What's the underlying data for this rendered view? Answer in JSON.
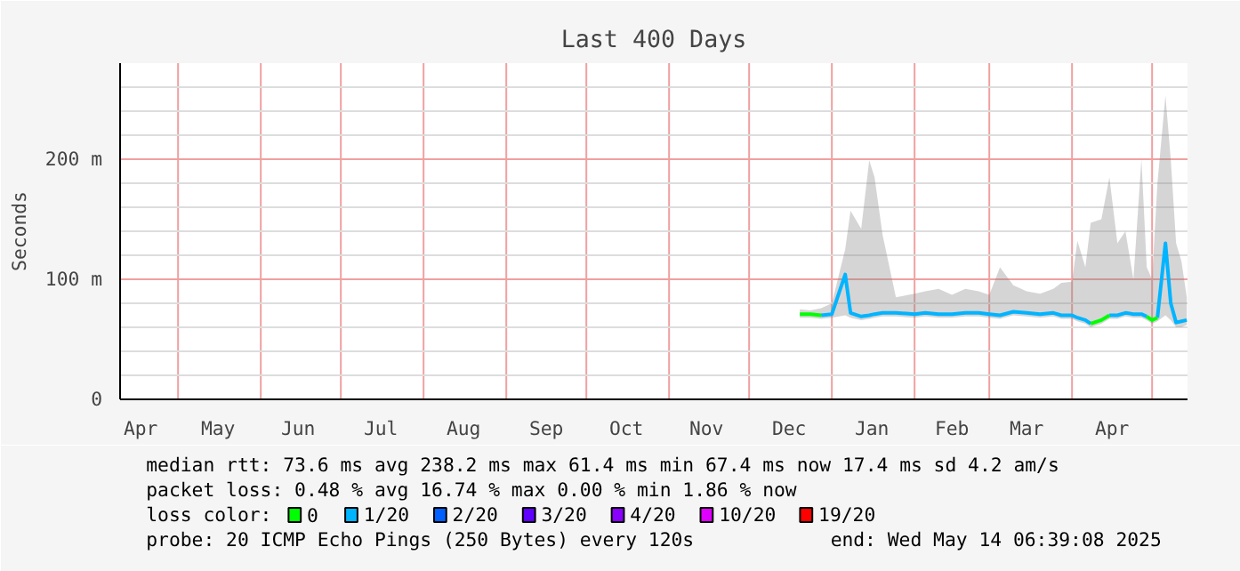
{
  "chart_data": {
    "type": "line",
    "title": "Last 400 Days",
    "ylabel": "Seconds",
    "legend_title": "loss color:",
    "legend": "bottom",
    "grid": true,
    "line_style": "solid",
    "xlim": [
      "2024-04-09T06:39",
      "2025-05-14T06:39"
    ],
    "xticks": [
      {
        "value": "2024-05-01",
        "label": null
      },
      {
        "value": "2024-06-01",
        "label": null
      },
      {
        "value": "2024-07-01",
        "label": null
      },
      {
        "value": "2024-08-01",
        "label": null
      },
      {
        "value": "2024-09-01",
        "label": null
      },
      {
        "value": "2024-10-01",
        "label": null
      },
      {
        "value": "2024-11-01",
        "label": null
      },
      {
        "value": "2024-12-01",
        "label": null
      },
      {
        "value": "2025-01-01",
        "label": null
      },
      {
        "value": "2025-02-01",
        "label": null
      },
      {
        "value": "2025-03-01",
        "label": null
      },
      {
        "value": "2025-04-01",
        "label": null
      },
      {
        "value": "2025-05-01",
        "label": null
      },
      {
        "value": "2024-04-17",
        "label": "Apr"
      },
      {
        "value": "2024-05-16",
        "label": "May"
      },
      {
        "value": "2024-06-15",
        "label": "Jun"
      },
      {
        "value": "2024-07-16",
        "label": "Jul"
      },
      {
        "value": "2024-08-16",
        "label": "Aug"
      },
      {
        "value": "2024-09-16",
        "label": "Sep"
      },
      {
        "value": "2024-10-16",
        "label": "Oct"
      },
      {
        "value": "2024-11-15",
        "label": "Nov"
      },
      {
        "value": "2024-12-16",
        "label": "Dec"
      },
      {
        "value": "2025-01-16",
        "label": "Jan"
      },
      {
        "value": "2025-02-15",
        "label": "Feb"
      },
      {
        "value": "2025-03-15",
        "label": "Mar"
      },
      {
        "value": "2025-04-16",
        "label": "Apr"
      }
    ],
    "ylim": [
      0,
      280
    ],
    "yticks": [
      {
        "value": 0,
        "label": "0"
      },
      {
        "value": 20,
        "label": null
      },
      {
        "value": 40,
        "label": null
      },
      {
        "value": 60,
        "label": null
      },
      {
        "value": 80,
        "label": null
      },
      {
        "value": 100,
        "label": "100 m"
      },
      {
        "value": 120,
        "label": null
      },
      {
        "value": 140,
        "label": null
      },
      {
        "value": 160,
        "label": null
      },
      {
        "value": 180,
        "label": null
      },
      {
        "value": 200,
        "label": "200 m"
      },
      {
        "value": 220,
        "label": null
      },
      {
        "value": 240,
        "label": null
      },
      {
        "value": 260,
        "label": null
      }
    ],
    "series": [
      {
        "name": "1/20",
        "color": "#00b4ff",
        "x": [
          "2024-12-20",
          "2024-12-24",
          "2024-12-28",
          "2025-01-01",
          "2025-01-06",
          "2025-01-08",
          "2025-01-12",
          "2025-01-15",
          "2025-01-17",
          "2025-01-20",
          "2025-01-25",
          "2025-02-01",
          "2025-02-05",
          "2025-02-10",
          "2025-02-15",
          "2025-02-20",
          "2025-02-25",
          "2025-03-01",
          "2025-03-05",
          "2025-03-10",
          "2025-03-15",
          "2025-03-20",
          "2025-03-25",
          "2025-03-28",
          "2025-04-01",
          "2025-04-03",
          "2025-04-06",
          "2025-04-08",
          "2025-04-12",
          "2025-04-15",
          "2025-04-18",
          "2025-04-21",
          "2025-04-24",
          "2025-04-27",
          "2025-04-29",
          "2025-05-01",
          "2025-05-03",
          "2025-05-06",
          "2025-05-08",
          "2025-05-10",
          "2025-05-12",
          "2025-05-14"
        ],
        "values": [
          null,
          null,
          70,
          71,
          104,
          72,
          69,
          70,
          71,
          72,
          72,
          71,
          72,
          71,
          71,
          72,
          72,
          71,
          70,
          73,
          72,
          71,
          72,
          70,
          70,
          68,
          66,
          63,
          null,
          70,
          70,
          72,
          71,
          71,
          69,
          null,
          68,
          130,
          80,
          64,
          65,
          66
        ],
        "lower": [
          68,
          68,
          67,
          68,
          70,
          68,
          66,
          67,
          68,
          69,
          69,
          68,
          69,
          68,
          68,
          69,
          69,
          68,
          67,
          70,
          69,
          68,
          69,
          67,
          67,
          65,
          63,
          60,
          63,
          67,
          67,
          69,
          68,
          68,
          66,
          63,
          65,
          70,
          66,
          60,
          60,
          62
        ],
        "upper": [
          75,
          74,
          76,
          80,
          125,
          157,
          142,
          199,
          185,
          137,
          85,
          88,
          90,
          92,
          87,
          92,
          90,
          87,
          110,
          95,
          90,
          88,
          92,
          97,
          98,
          132,
          110,
          147,
          150,
          185,
          130,
          140,
          100,
          200,
          110,
          100,
          180,
          253,
          200,
          130,
          115,
          85
        ]
      },
      {
        "name": "0",
        "color": "#00ff00",
        "x": [
          "2024-12-20",
          "2024-12-24",
          "2024-12-28",
          "2024-12-30",
          "2025-04-08",
          "2025-04-12",
          "2025-04-15",
          "2025-04-16",
          "2025-04-29",
          "2025-05-01",
          "2025-05-03"
        ],
        "values": [
          71,
          71,
          70,
          null,
          63,
          66,
          70,
          null,
          69,
          66,
          68
        ]
      },
      {
        "name": "2/20",
        "color": "#0060ff"
      },
      {
        "name": "3/20",
        "color": "#6000ff"
      },
      {
        "name": "4/20",
        "color": "#8a00ff"
      },
      {
        "name": "10/20",
        "color": "#e000ff"
      },
      {
        "name": "19/20",
        "color": "#ff0000"
      }
    ],
    "annotations": [
      "median rtt:  73.6 ms avg  238.2 ms max  61.4 ms min  67.4 ms now  17.4 ms sd  4.2   am/s",
      "packet loss: 0.48 % avg  16.74 % max  0.00 % min  1.86 % now",
      "probe:        20 ICMP Echo Pings (250 Bytes) every 120s",
      "end: Wed May 14 06:39:08 2025"
    ]
  }
}
